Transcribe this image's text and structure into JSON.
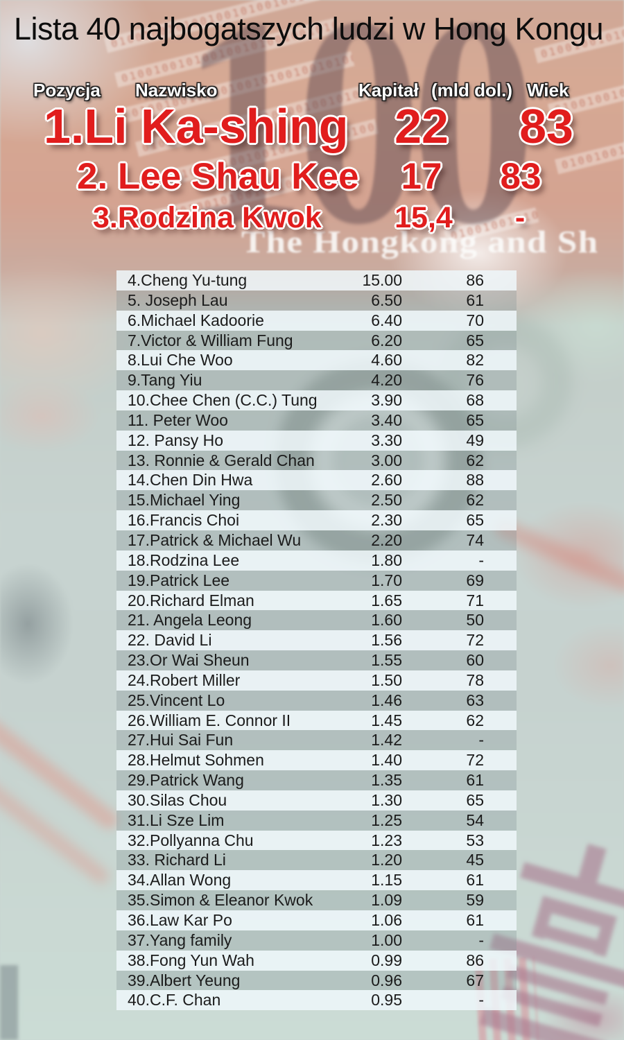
{
  "title": "Lista 40 najbogatszych ludzi w Hong Kongu",
  "headers": {
    "position": "Pozycja",
    "name": "Nazwisko",
    "capital": "Kapitał",
    "capital_unit": "(mld dol.)",
    "age": "Wiek"
  },
  "top3": [
    {
      "label": "1.Li Ka-shing",
      "capital": "22",
      "age": "83"
    },
    {
      "label": "2. Lee Shau Kee",
      "capital": "17",
      "age": "83"
    },
    {
      "label": "3.Rodzina Kwok",
      "capital": "15,4",
      "age": "-"
    }
  ],
  "table": {
    "rows": [
      {
        "label": "4.Cheng Yu-tung",
        "capital": "15.00",
        "age": "86"
      },
      {
        "label": "5. Joseph Lau",
        "capital": "6.50",
        "age": "61"
      },
      {
        "label": "6.Michael Kadoorie",
        "capital": "6.40",
        "age": "70"
      },
      {
        "label": "7.Victor & William Fung",
        "capital": "6.20",
        "age": "65"
      },
      {
        "label": "8.Lui Che Woo",
        "capital": "4.60",
        "age": "82"
      },
      {
        "label": "9.Tang Yiu",
        "capital": "4.20",
        "age": "76"
      },
      {
        "label": "10.Chee Chen (C.C.) Tung",
        "capital": "3.90",
        "age": "68"
      },
      {
        "label": "11. Peter Woo",
        "capital": "3.40",
        "age": "65"
      },
      {
        "label": "12. Pansy Ho",
        "capital": "3.30",
        "age": "49"
      },
      {
        "label": "13. Ronnie & Gerald Chan",
        "capital": "3.00",
        "age": "62"
      },
      {
        "label": "14.Chen Din Hwa",
        "capital": "2.60",
        "age": "88"
      },
      {
        "label": "15.Michael Ying",
        "capital": "2.50",
        "age": "62"
      },
      {
        "label": "16.Francis Choi",
        "capital": "2.30",
        "age": "65"
      },
      {
        "label": "17.Patrick & Michael Wu",
        "capital": "2.20",
        "age": "74"
      },
      {
        "label": "18.Rodzina Lee",
        "capital": "1.80",
        "age": "-"
      },
      {
        "label": "19.Patrick Lee",
        "capital": "1.70",
        "age": "69"
      },
      {
        "label": "20.Richard Elman",
        "capital": "1.65",
        "age": "71"
      },
      {
        "label": "21. Angela Leong",
        "capital": "1.60",
        "age": "50"
      },
      {
        "label": "22. David Li",
        "capital": "1.56",
        "age": "72"
      },
      {
        "label": "23.Or Wai Sheun",
        "capital": "1.55",
        "age": "60"
      },
      {
        "label": "24.Robert Miller",
        "capital": "1.50",
        "age": "78"
      },
      {
        "label": "25.Vincent Lo",
        "capital": "1.46",
        "age": "63"
      },
      {
        "label": "26.William E. Connor II",
        "capital": "1.45",
        "age": "62"
      },
      {
        "label": "27.Hui Sai Fun",
        "capital": "1.42",
        "age": "-"
      },
      {
        "label": "28.Helmut Sohmen",
        "capital": "1.40",
        "age": "72"
      },
      {
        "label": "29.Patrick Wang",
        "capital": "1.35",
        "age": "61"
      },
      {
        "label": "30.Silas Chou",
        "capital": "1.30",
        "age": "65"
      },
      {
        "label": "31.Li Sze Lim",
        "capital": "1.25",
        "age": "54"
      },
      {
        "label": "32.Pollyanna Chu",
        "capital": "1.23",
        "age": "53"
      },
      {
        "label": "33. Richard Li",
        "capital": "1.20",
        "age": "45"
      },
      {
        "label": "34.Allan Wong",
        "capital": "1.15",
        "age": "61"
      },
      {
        "label": "35.Simon & Eleanor Kwok",
        "capital": "1.09",
        "age": "59"
      },
      {
        "label": "36.Law Kar Po",
        "capital": "1.06",
        "age": "61"
      },
      {
        "label": "37.Yang family",
        "capital": "1.00",
        "age": "-"
      },
      {
        "label": "38.Fong Yun Wah",
        "capital": "0.99",
        "age": "86"
      },
      {
        "label": "39.Albert Yeung",
        "capital": "0.96",
        "age": "67"
      },
      {
        "label": "40.C.F. Chan",
        "capital": "0.95",
        "age": "-"
      }
    ]
  },
  "background": {
    "watermark_number": "100",
    "bank_text": "The Hongkong and Sh",
    "binary_pattern": "0100100101001001010010010100100101001001"
  },
  "colors": {
    "accent_red": "#e11d1d",
    "text_dark": "#1b1b1b",
    "header_white": "#ffffff",
    "stripe_light": "#eef7fa",
    "stripe_dark": "#809295"
  },
  "chart_data": {
    "type": "table",
    "title": "Lista 40 najbogatszych ludzi w Hong Kongu",
    "columns": [
      "Pozycja",
      "Nazwisko",
      "Kapitał (mld dol.)",
      "Wiek"
    ],
    "rows": [
      [
        1,
        "Li Ka-shing",
        22,
        83
      ],
      [
        2,
        "Lee Shau Kee",
        17,
        83
      ],
      [
        3,
        "Rodzina Kwok",
        15.4,
        null
      ],
      [
        4,
        "Cheng Yu-tung",
        15.0,
        86
      ],
      [
        5,
        "Joseph Lau",
        6.5,
        61
      ],
      [
        6,
        "Michael Kadoorie",
        6.4,
        70
      ],
      [
        7,
        "Victor & William Fung",
        6.2,
        65
      ],
      [
        8,
        "Lui Che Woo",
        4.6,
        82
      ],
      [
        9,
        "Tang Yiu",
        4.2,
        76
      ],
      [
        10,
        "Chee Chen (C.C.) Tung",
        3.9,
        68
      ],
      [
        11,
        "Peter Woo",
        3.4,
        65
      ],
      [
        12,
        "Pansy Ho",
        3.3,
        49
      ],
      [
        13,
        "Ronnie & Gerald Chan",
        3.0,
        62
      ],
      [
        14,
        "Chen Din Hwa",
        2.6,
        88
      ],
      [
        15,
        "Michael Ying",
        2.5,
        62
      ],
      [
        16,
        "Francis Choi",
        2.3,
        65
      ],
      [
        17,
        "Patrick & Michael Wu",
        2.2,
        74
      ],
      [
        18,
        "Rodzina Lee",
        1.8,
        null
      ],
      [
        19,
        "Patrick Lee",
        1.7,
        69
      ],
      [
        20,
        "Richard Elman",
        1.65,
        71
      ],
      [
        21,
        "Angela Leong",
        1.6,
        50
      ],
      [
        22,
        "David Li",
        1.56,
        72
      ],
      [
        23,
        "Or Wai Sheun",
        1.55,
        60
      ],
      [
        24,
        "Robert Miller",
        1.5,
        78
      ],
      [
        25,
        "Vincent Lo",
        1.46,
        63
      ],
      [
        26,
        "William E. Connor II",
        1.45,
        62
      ],
      [
        27,
        "Hui Sai Fun",
        1.42,
        null
      ],
      [
        28,
        "Helmut Sohmen",
        1.4,
        72
      ],
      [
        29,
        "Patrick Wang",
        1.35,
        61
      ],
      [
        30,
        "Silas Chou",
        1.3,
        65
      ],
      [
        31,
        "Li Sze Lim",
        1.25,
        54
      ],
      [
        32,
        "Pollyanna Chu",
        1.23,
        53
      ],
      [
        33,
        "Richard Li",
        1.2,
        45
      ],
      [
        34,
        "Allan Wong",
        1.15,
        61
      ],
      [
        35,
        "Simon & Eleanor Kwok",
        1.09,
        59
      ],
      [
        36,
        "Law Kar Po",
        1.06,
        61
      ],
      [
        37,
        "Yang family",
        1.0,
        null
      ],
      [
        38,
        "Fong Yun Wah",
        0.99,
        86
      ],
      [
        39,
        "Albert Yeung",
        0.96,
        67
      ],
      [
        40,
        "C.F. Chan",
        0.95,
        null
      ]
    ]
  }
}
